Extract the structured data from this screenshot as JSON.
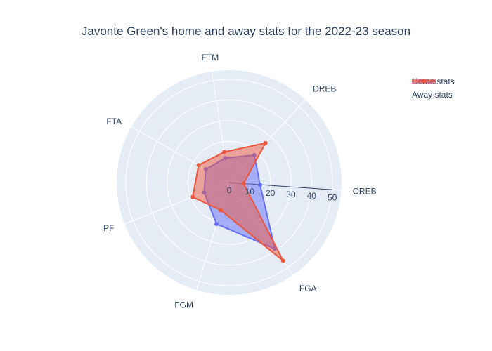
{
  "chart_data": {
    "type": "radar",
    "title": "Javonte Green's home and away stats for the 2022-23 season",
    "categories": [
      "OREB",
      "DREB",
      "FTM",
      "FTA",
      "PF",
      "FGM",
      "FGA"
    ],
    "radial_ticks": [
      "0",
      "10",
      "20",
      "30",
      "40",
      "50"
    ],
    "radial_range": [
      0,
      50
    ],
    "series": [
      {
        "name": "Home stats",
        "color": "#636efa",
        "values": [
          15,
          18,
          12,
          13,
          13,
          21,
          39
        ]
      },
      {
        "name": "Away stats",
        "color": "#ef553b",
        "values": [
          7,
          26,
          15,
          17,
          19,
          14,
          46
        ]
      }
    ],
    "legend_position": "top-right",
    "grid": true
  }
}
